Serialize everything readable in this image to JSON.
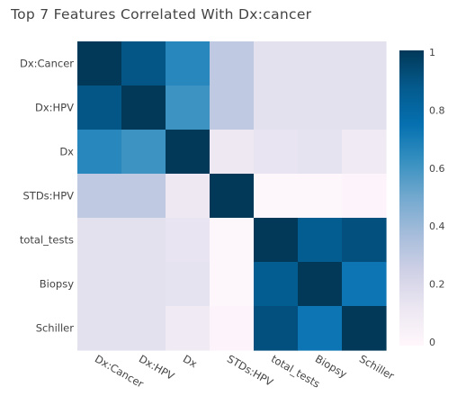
{
  "chart_data": {
    "type": "heatmap",
    "title": "Top 7 Features Correlated With Dx:cancer",
    "x_categories": [
      "Dx:Cancer",
      "Dx:HPV",
      "Dx",
      "STDs:HPV",
      "total_tests",
      "Biopsy",
      "Schiller"
    ],
    "y_categories": [
      "Dx:Cancer",
      "Dx:HPV",
      "Dx",
      "STDs:HPV",
      "total_tests",
      "Biopsy",
      "Schiller"
    ],
    "z": [
      [
        1.0,
        0.89,
        0.66,
        0.3,
        0.16,
        0.16,
        0.16
      ],
      [
        0.89,
        1.0,
        0.61,
        0.3,
        0.16,
        0.16,
        0.16
      ],
      [
        0.66,
        0.61,
        1.0,
        0.12,
        0.14,
        0.15,
        0.1
      ],
      [
        0.3,
        0.3,
        0.12,
        1.0,
        0.01,
        0.01,
        0.02
      ],
      [
        0.16,
        0.16,
        0.14,
        0.01,
        1.0,
        0.86,
        0.91
      ],
      [
        0.16,
        0.16,
        0.15,
        0.01,
        0.86,
        1.0,
        0.73
      ],
      [
        0.16,
        0.16,
        0.1,
        0.02,
        0.91,
        0.73,
        1.0
      ]
    ],
    "zlim": [
      0,
      1
    ],
    "colorscale": [
      "#fff7fb",
      "#ece7f2",
      "#d0d1e6",
      "#a6bddb",
      "#74a9cf",
      "#3690c0",
      "#0570b0",
      "#045a8d",
      "#023858"
    ],
    "colorbar": {
      "ticks": [
        0,
        0.2,
        0.4,
        0.6,
        0.8,
        1
      ],
      "tick_labels": [
        "0",
        "0.2",
        "0.4",
        "0.6",
        "0.8",
        "1"
      ]
    }
  }
}
